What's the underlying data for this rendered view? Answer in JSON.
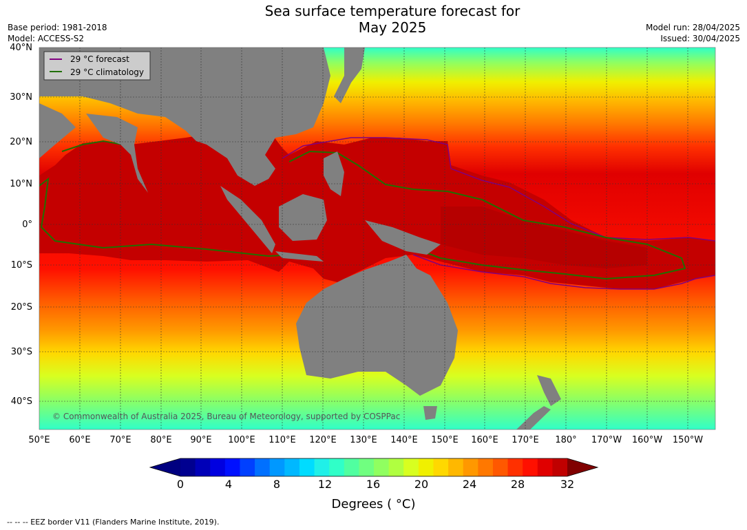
{
  "header": {
    "title_line1": "Sea surface temperature forecast for",
    "title_line2": "May 2025",
    "base_period": "Base period: 1981-2018",
    "model": "Model: ACCESS-S2",
    "model_run": "Model run: 28/04/2025",
    "issued": "Issued: 30/04/2025"
  },
  "map": {
    "lat_labels": [
      "40°N",
      "30°N",
      "20°N",
      "10°N",
      "0°",
      "10°S",
      "20°S",
      "30°S",
      "40°S"
    ],
    "lon_labels": [
      "50°E",
      "60°E",
      "70°E",
      "80°E",
      "90°E",
      "100°E",
      "110°E",
      "120°E",
      "130°E",
      "140°E",
      "150°E",
      "160°E",
      "170°E",
      "180°",
      "170°W",
      "160°W",
      "150°W"
    ],
    "land_color": "#808080",
    "warm_pool_color": "#c40000",
    "copyright": "© Commonwealth of Australia 2025, Bureau of Meteorology, supported by COSPPac"
  },
  "legend": {
    "items": [
      {
        "label": "29 °C  forecast",
        "color": "#800080"
      },
      {
        "label": "29 °C  climatology",
        "color": "#207000"
      }
    ]
  },
  "colorbar": {
    "ticks": [
      "0",
      "4",
      "8",
      "12",
      "16",
      "20",
      "24",
      "28",
      "32"
    ],
    "label": "Degrees ( °C)",
    "colors": [
      "#000090",
      "#0000b8",
      "#0000e0",
      "#0010ff",
      "#0040ff",
      "#0070ff",
      "#0098ff",
      "#00b8ff",
      "#00dcff",
      "#20f0e8",
      "#30ffc8",
      "#50ffa0",
      "#70ff80",
      "#90ff60",
      "#b0ff40",
      "#d8ff20",
      "#f0f000",
      "#ffd800",
      "#ffb800",
      "#ff9800",
      "#ff7800",
      "#ff5800",
      "#ff3000",
      "#ff1000",
      "#e00000",
      "#c00000"
    ],
    "under_color": "#000080",
    "over_color": "#800000"
  },
  "footnote": "--  --  -- EEZ border V11 (Flanders Marine Institute, 2019)."
}
